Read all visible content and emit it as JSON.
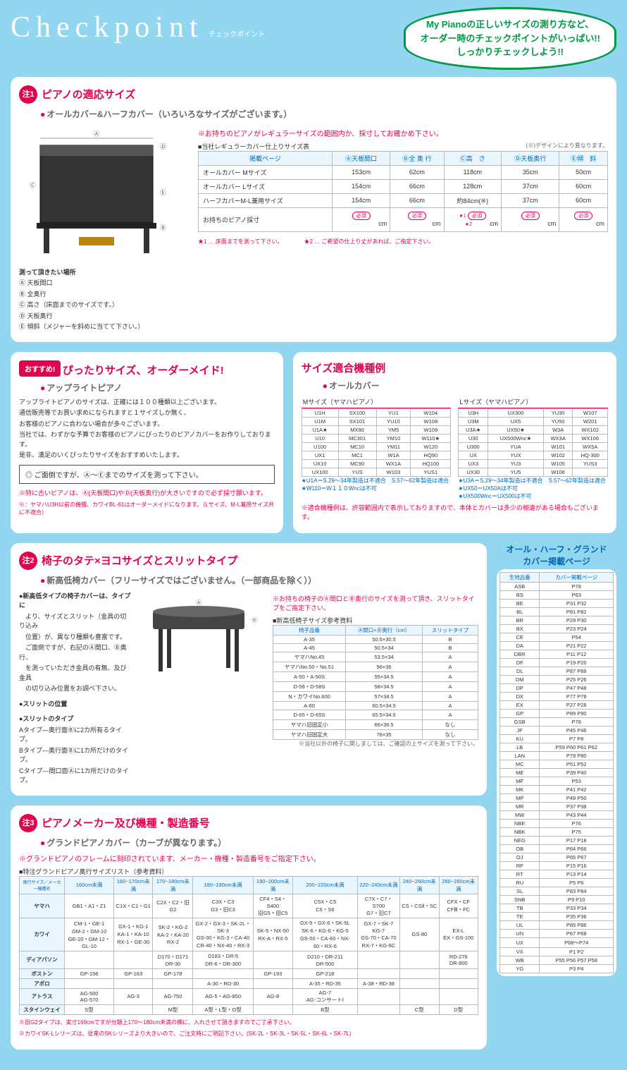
{
  "header": {
    "title": "Checkpoint",
    "subtitle": "チェックポイント",
    "bubble1": "My Pianoの正しいサイズの測り方など、",
    "bubble2": "オーダー時のチェックポイントがいっぱい!!",
    "bubble3": "しっかりチェックしよう!!"
  },
  "sec1": {
    "badge": "注1",
    "title": "ピアノの適応サイズ",
    "sub": "オールカバー&ハーフカバー（いろいろなサイズがございます。）",
    "measure_note": "測って頂きたい場所",
    "labels": [
      "Ⓐ 天板間口",
      "Ⓑ 全奥行",
      "Ⓒ 高さ（床面までのサイズです。）",
      "Ⓓ 天板奥行",
      "Ⓔ 傾斜（メジャーを斜めに当てて下さい。）"
    ],
    "warn": "※お持ちのピアノがレギュラーサイズの範囲内か、採寸してお確かめ下さい。",
    "table_caption": "■当社レギュラーカバー仕上りサイズ表",
    "table_note": "(※)デザインにより異なります。",
    "headers": [
      "掲載ページ",
      "Ⓐ天板間口",
      "Ⓑ全 奥 行",
      "Ⓒ高　さ",
      "Ⓓ天板奥行",
      "Ⓔ傾　斜"
    ],
    "rows": [
      [
        "オールカバー Mサイズ",
        "153cm",
        "62cm",
        "118cm",
        "35cm",
        "50cm"
      ],
      [
        "オールカバー Lサイズ",
        "154cm",
        "66cm",
        "128cm",
        "37cm",
        "60cm"
      ],
      [
        "ハーフカバーM-L兼用サイズ",
        "154cm",
        "66cm",
        "約84cm(※)",
        "37cm",
        "60cm"
      ]
    ],
    "measure_label": "お持ちのピアノ採寸",
    "req": "必須",
    "star1": "★1",
    "star2": "★2",
    "foot1": "★1 … 床面までを測って下さい。",
    "foot2": "★2 … ご希望の仕上り丈があれば、ご指定下さい。"
  },
  "osusume": {
    "badge": "おすすめ!",
    "title": "ぴったりサイズ、オーダーメイド!",
    "sub": "アップライトピアノ",
    "body1": "アップライトピアノのサイズは、正確には１００種類以上ございます。",
    "body2": "通信販売等でお買い求めになられますと１サイズしか無く、",
    "body3": "お客様のピアノに合わない場合が多々ございます。",
    "body4": "当社では、わずかな予算でお客様のピアノにぴったりのピアノカバーをお作りしております。",
    "body5": "是非、満足のいくぴったりサイズをおすすめいたします。",
    "box": "◎ ご面倒ですが、Ⓐ～Ⓔまでのサイズを測って下さい。",
    "note1": "※特に古いピアノは、Ⓐ(天板間口)やⒹ(天板奥行)が大きいですので必ず採寸願います。",
    "note2": "※：ヤマハU3H以前の機種、カワイBL-61はオーダーメイドになります。（Lサイズ、M-L兼用サイズ共に不適合）"
  },
  "models": {
    "title": "サイズ適合機種例",
    "sub": "オールカバー",
    "m_label": "Mサイズ（ヤマハピアノ）",
    "l_label": "Lサイズ（ヤマハピアノ）",
    "m_rows": [
      [
        "U1H",
        "SX100",
        "YU1",
        "W104"
      ],
      [
        "U1M",
        "SX101",
        "YU10",
        "W108"
      ],
      [
        "U1A★",
        "MX90",
        "YM5",
        "W109"
      ],
      [
        "U10",
        "MC301",
        "YM10",
        "W110★"
      ],
      [
        "U100",
        "MC10",
        "YM11",
        "W120"
      ],
      [
        "UX1",
        "MC1",
        "W1A",
        "HQ90"
      ],
      [
        "UX10",
        "MC90",
        "WX1A",
        "HQ100"
      ],
      [
        "UX100",
        "YUS",
        "W103",
        "YUS1"
      ]
    ],
    "m_notes": [
      "★U1A＝S.29～34年製造は不適合　S.57～62年製造は適合",
      "★W110＝W１１０Wncは不可"
    ],
    "l_rows": [
      [
        "U3H",
        "UX300",
        "YU30",
        "W107"
      ],
      [
        "U3M",
        "UX5",
        "YU50",
        "W201"
      ],
      [
        "U3A★",
        "UX50★",
        "W3A",
        "WX102"
      ],
      [
        "U30",
        "UX500Wnc★",
        "WX3A",
        "WX106"
      ],
      [
        "U300",
        "YUA",
        "W101",
        "WX5A"
      ],
      [
        "UX",
        "YUX",
        "W102",
        "HQ-300"
      ],
      [
        "UX3",
        "YU3",
        "W105",
        "YUS3"
      ],
      [
        "UX30",
        "YU5",
        "W106",
        ""
      ]
    ],
    "l_notes": [
      "★U3A＝S.29～34年製造は不適合　S.57～62年製造は適合",
      "★UX50＝UX50Aは不可",
      "★UX500Wnc＝UX500は不可"
    ],
    "warn": "※適合機種例は、許容範囲内で表示しておりますので、本体とカバーは多少の相違がある場合もございます。"
  },
  "sec2": {
    "badge": "注2",
    "title": "椅子のタテ×ヨコサイズとスリットタイプ",
    "sub": "新高低椅カバー（フリーサイズではございません。（一部商品を除く））",
    "body_title": "●新高低タイプの椅子カバーは、タイプに",
    "body": [
      "　より、サイズとスリット（金具の切り込み",
      "　位置）が、異なり種類も豊富です。",
      "　ご面倒ですが、右記のⒶ間口、Ⓑ奥行、",
      "　を測っていただき金具の有無、及び金具",
      "　の切り込み位置をお調べ下さい。"
    ],
    "slit_pos": "●スリットの位置",
    "slit_type": "●スリットのタイプ",
    "slit_lines": [
      "Aタイプ―奥行面Ⓑに2カ所有るタイプ。",
      "Bタイプ―奥行面Ⓑに1カ所だけのタイプ。",
      "Cタイプ―間口面Ⓐに1カ所だけのタイプ。"
    ],
    "warn": "※お持ちの椅子のⒶ間口とⒷ奥行のサイズを測って頂き、スリットタイプをご指定下さい。",
    "tbl_caption": "■新高低椅子サイズ参考資料",
    "headers": [
      "椅子品番",
      "Ⓐ間口×Ⓑ奥行（cm）",
      "スリットタイプ"
    ],
    "rows": [
      [
        "A-35",
        "50.5×30.5",
        "B"
      ],
      [
        "A-45",
        "50.5×34",
        "B"
      ],
      [
        "ヤマハNo.45",
        "53.5×34",
        "A"
      ],
      [
        "ヤマハNo.50・No.51",
        "56×36",
        "A"
      ],
      [
        "A-50・A-50S",
        "55×34.5",
        "A"
      ],
      [
        "D-58・D-58S",
        "58×34.5",
        "A"
      ],
      [
        "N・カワイNo.600",
        "57×34.5",
        "A"
      ],
      [
        "A-60",
        "60.5×34.5",
        "A"
      ],
      [
        "D-65・D-65S",
        "65.5×34.5",
        "A"
      ],
      [
        "ヤマハ旧固定小",
        "66×36.5",
        "なし"
      ],
      [
        "ヤマハ旧固定大",
        "76×35",
        "なし"
      ]
    ],
    "foot": "※当社以外の椅子に関しましては、ご確認の上サイズを測って下さい。"
  },
  "sec3": {
    "badge": "注3",
    "title": "ピアノメーカー及び機種・製造番号",
    "sub": "グランドピアノカバー（カーブが異なります。）",
    "warn": "※グランドピアノのフレームに刻印されています、メーカー・機種・製造番号をご指定下さい。",
    "caption": "■特注グランドピアノ奥行サイズリスト（参考資料）",
    "head_corner": "奥行サイズ／メーカー機種名",
    "cols": [
      "160cm未満",
      "160~170cm未満",
      "170~180cm未満",
      "180~190cm未満",
      "190~200cm未満",
      "200~220cm未満",
      "220~240cm未満",
      "240~260cm未満",
      "260~280cm未満"
    ],
    "rows": [
      [
        "ヤマハ",
        "GB1・A1・Z1",
        "C1X・C1・G1",
        "C2X・C2・旧G2",
        "C3X・C3\nG3・旧C3",
        "CF4・S4・S400\n旧G5・旧C5",
        "C5X・C5\nC6・S6",
        "C7X・C7・S700\nG7・旧C7",
        "CS・CSⅡ・SC",
        "CFX・CF\nCFⅢ・FC"
      ],
      [
        "カワイ",
        "CM-1・GE-1\nGM-2・GM-10\nGE-20・GM-12・GL-10",
        "GX-1・KG-1\nKA-1・KA-10\nRX-1・GE-30",
        "SK-2・KG-2\nKA-2・KA-20\nRX-2",
        "GX-2・GX-3・SK-2L・SK-3\nGS-30・KG-3・CA-40\nCR-40・NX-40・RX-3",
        "SK-5・NX-50\nRX-A・RX-5",
        "GX-5・GX-6・SK-5L\nSK-6・KG-6・KG-5\nGS-50・CA-60・NX-60・RX-6",
        "GX-7・SK-7 KG-7\nGS-70・CA-70\nRX-7・KG-6C",
        "GS-80",
        "EX-L\nEX・GS-100"
      ],
      [
        "ディアパソン",
        "",
        "",
        "D170・D171\nDR-30",
        "D183・DR-5\nDR-6・DR-300",
        "",
        "D210・DR-211\nDR-500",
        "",
        "",
        "RD-276\nDR-800"
      ],
      [
        "ボストン",
        "GP-156",
        "GP-163",
        "GP-178",
        "",
        "GP-193",
        "GP-218",
        "",
        "",
        ""
      ],
      [
        "アポロ",
        "",
        "",
        "",
        "A-30・RD-30",
        "",
        "A-35・RD-35",
        "A-38・RD-38",
        "",
        ""
      ],
      [
        "アトラス",
        "AG-500\nAG-570",
        "AG-3",
        "AG-750",
        "AG-5・AG-850",
        "AG-8",
        "AG-7\nAG-コンサートⅠ",
        "",
        "",
        ""
      ],
      [
        "スタインウェイ",
        "S型",
        "",
        "M型",
        "A型・L型・O型",
        "",
        "B型",
        "",
        "C型",
        "D型"
      ]
    ],
    "foot1": "※旧G2タイプは、実寸169cmですが分類上170～180cm未満の欄に、入れさせて頂きますのでご了承下さい。",
    "foot2": "※カワイSK-Lシリーズは、従来のSKシリーズより大きいので、ご注文時にご明記下さい。(SK-2L・SK-3L・SK-5L・SK-6L・SK-7L)"
  },
  "side": {
    "title1": "オール・ハーフ・グランド",
    "title2": "カバー掲載ページ",
    "headers": [
      "生地品番",
      "カバー掲載ページ"
    ],
    "rows": [
      [
        "ASB",
        "P78"
      ],
      [
        "BS",
        "P63"
      ],
      [
        "BE",
        "P31 P32"
      ],
      [
        "BL",
        "P81 P82"
      ],
      [
        "BR",
        "P29 P30"
      ],
      [
        "BX",
        "P23 P24"
      ],
      [
        "CE",
        "P54"
      ],
      [
        "DA",
        "P21 P22"
      ],
      [
        "DBR",
        "P11 P12"
      ],
      [
        "DF",
        "P19 P20"
      ],
      [
        "DL",
        "P87 P88"
      ],
      [
        "DM",
        "P25 P26"
      ],
      [
        "DP",
        "P47 P48"
      ],
      [
        "DX",
        "P77 P78"
      ],
      [
        "EX",
        "P27 P28"
      ],
      [
        "GP",
        "P89 P90"
      ],
      [
        "GSB",
        "P78"
      ],
      [
        "JF",
        "P45 P46"
      ],
      [
        "KU",
        "P7 P8"
      ],
      [
        "LB",
        "P59 P60 P61 P62"
      ],
      [
        "LAN",
        "P79 P80"
      ],
      [
        "MC",
        "P51 P52"
      ],
      [
        "ME",
        "P39 P40"
      ],
      [
        "MF",
        "P53"
      ],
      [
        "MK",
        "P41 P42"
      ],
      [
        "MP",
        "P49 P50"
      ],
      [
        "MR",
        "P37 P38"
      ],
      [
        "MW",
        "P43 P44"
      ],
      [
        "NBE",
        "P76"
      ],
      [
        "NBK",
        "P75"
      ],
      [
        "NEG",
        "P17 P18"
      ],
      [
        "OB",
        "P64 P66"
      ],
      [
        "OJ",
        "P65 P67"
      ],
      [
        "RF",
        "P15 P16"
      ],
      [
        "RT",
        "P13 P14"
      ],
      [
        "RU",
        "P5 P6"
      ],
      [
        "SL",
        "P83 P84"
      ],
      [
        "SNB",
        "P9 P10"
      ],
      [
        "TB",
        "P33 P34"
      ],
      [
        "TE",
        "P35 P36"
      ],
      [
        "UL",
        "P85 P86"
      ],
      [
        "UN",
        "P67 P68"
      ],
      [
        "UX",
        "P68～P74"
      ],
      [
        "VX",
        "P1 P2"
      ],
      [
        "WB",
        "P55 P56 P57 P58"
      ],
      [
        "YG",
        "P3 P4"
      ]
    ]
  }
}
